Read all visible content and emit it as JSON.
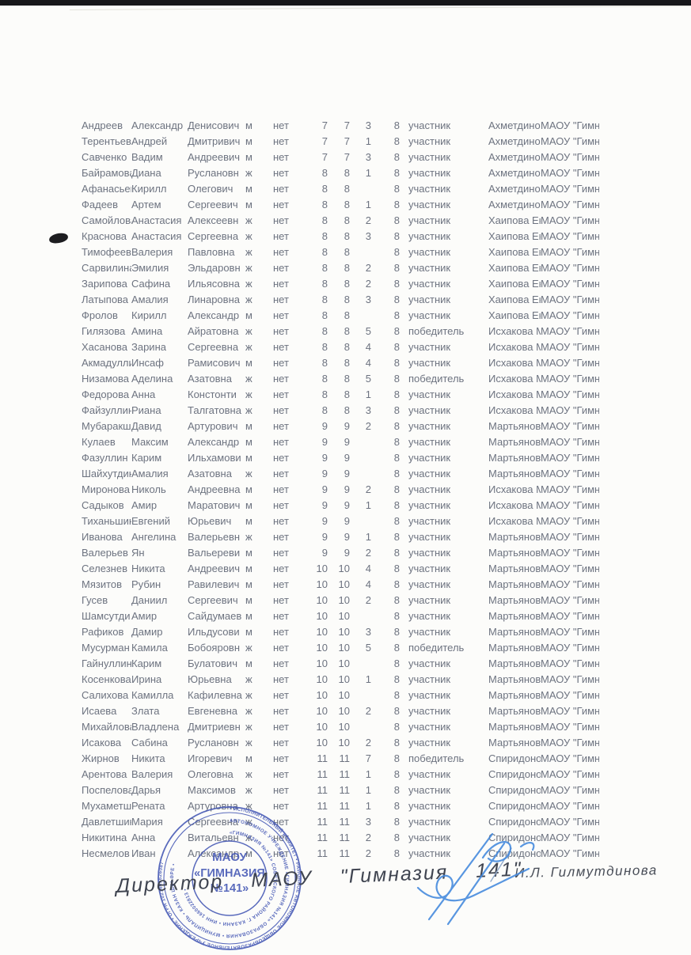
{
  "table": {
    "constants": {
      "no_flag": "нет",
      "code": "8"
    },
    "rows": [
      [
        "Андреев",
        "Александр",
        "Денисович",
        "м",
        "нет",
        "7",
        "7",
        "3",
        "8",
        "участник",
        "Ахметдино",
        "МАОУ \"Гимн"
      ],
      [
        "Терентьев",
        "Андрей",
        "Дмитривич",
        "м",
        "нет",
        "7",
        "7",
        "1",
        "8",
        "участник",
        "Ахметдино",
        "МАОУ \"Гимн"
      ],
      [
        "Савченко",
        "Вадим",
        "Андреевич",
        "м",
        "нет",
        "7",
        "7",
        "3",
        "8",
        "участник",
        "Ахметдино",
        "МАОУ \"Гимн"
      ],
      [
        "Байрамова",
        "Диана",
        "Руслановн",
        "ж",
        "нет",
        "8",
        "8",
        "1",
        "8",
        "участник",
        "Ахметдино",
        "МАОУ \"Гимн"
      ],
      [
        "Афанасьев",
        "Кирилл",
        "Олегович",
        "м",
        "нет",
        "8",
        "8",
        "",
        "8",
        "участник",
        "Ахметдино",
        "МАОУ \"Гимн"
      ],
      [
        "Фадеев",
        "Артем",
        "Сергеевич",
        "м",
        "нет",
        "8",
        "8",
        "1",
        "8",
        "участник",
        "Ахметдино",
        "МАОУ \"Гимн"
      ],
      [
        "Самойлова",
        "Анастасия",
        "Алексеевн",
        "ж",
        "нет",
        "8",
        "8",
        "2",
        "8",
        "участник",
        "Хаипова Ек",
        "МАОУ \"Гимн"
      ],
      [
        "Краснова",
        "Анастасия",
        "Сергеевна",
        "ж",
        "нет",
        "8",
        "8",
        "3",
        "8",
        "участник",
        "Хаипова Ек",
        "МАОУ \"Гимн"
      ],
      [
        "Тимофеева",
        "Валерия",
        "Павловна",
        "ж",
        "нет",
        "8",
        "8",
        "",
        "8",
        "участник",
        "Хаипова Ек",
        "МАОУ \"Гимн"
      ],
      [
        "Сарвилина",
        "Эмилия",
        "Эльдаровн",
        "ж",
        "нет",
        "8",
        "8",
        "2",
        "8",
        "участник",
        "Хаипова Ек",
        "МАОУ \"Гимн"
      ],
      [
        "Зарипова",
        "Сафина",
        "Ильясовна",
        "ж",
        "нет",
        "8",
        "8",
        "2",
        "8",
        "участник",
        "Хаипова Ек",
        "МАОУ \"Гимн"
      ],
      [
        "Латыпова",
        "Амалия",
        "Линаровна",
        "ж",
        "нет",
        "8",
        "8",
        "3",
        "8",
        "участник",
        "Хаипова Ек",
        "МАОУ \"Гимн"
      ],
      [
        "Фролов",
        "Кирилл",
        "Александр",
        "м",
        "нет",
        "8",
        "8",
        "",
        "8",
        "участник",
        "Хаипова Ек",
        "МАОУ \"Гимн"
      ],
      [
        "Гилязова",
        "Амина",
        "Айратовна",
        "ж",
        "нет",
        "8",
        "8",
        "5",
        "8",
        "победитель",
        "Исхакова М",
        "МАОУ \"Гимн"
      ],
      [
        "Хасанова",
        "Зарина",
        "Сергеевна",
        "ж",
        "нет",
        "8",
        "8",
        "4",
        "8",
        "участник",
        "Исхакова М",
        "МАОУ \"Гимн"
      ],
      [
        "Акмадулли",
        "Инсаф",
        "Рамисович",
        "м",
        "нет",
        "8",
        "8",
        "4",
        "8",
        "участник",
        "Исхакова М",
        "МАОУ \"Гимн"
      ],
      [
        "Низамова",
        "Аделина",
        "Азатовна",
        "ж",
        "нет",
        "8",
        "8",
        "5",
        "8",
        "победитель",
        "Исхакова М",
        "МАОУ \"Гимн"
      ],
      [
        "Федорова",
        "Анна",
        "Констонти",
        "ж",
        "нет",
        "8",
        "8",
        "1",
        "8",
        "участник",
        "Исхакова М",
        "МАОУ \"Гимн"
      ],
      [
        "Файзуллин",
        "Риана",
        "Талгатовна",
        "ж",
        "нет",
        "8",
        "8",
        "3",
        "8",
        "участник",
        "Исхакова М",
        "МАОУ \"Гимн"
      ],
      [
        "Мубаракш",
        "Давид",
        "Артурович",
        "м",
        "нет",
        "9",
        "9",
        "2",
        "8",
        "участник",
        "Мартьянов",
        "МАОУ \"Гимн"
      ],
      [
        "Кулаев",
        "Максим",
        "Александр",
        "м",
        "нет",
        "9",
        "9",
        "",
        "8",
        "участник",
        "Мартьянов",
        "МАОУ \"Гимн"
      ],
      [
        "Фазуллин",
        "Карим",
        "Ильхамови",
        "м",
        "нет",
        "9",
        "9",
        "",
        "8",
        "участник",
        "Мартьянов",
        "МАОУ \"Гимн"
      ],
      [
        "Шайхутдин",
        "Амалия",
        "Азатовна",
        "ж",
        "нет",
        "9",
        "9",
        "",
        "8",
        "участник",
        "Мартьянов",
        "МАОУ \"Гимн"
      ],
      [
        "Миронова",
        "Николь",
        "Андреевна",
        "м",
        "нет",
        "9",
        "9",
        "2",
        "8",
        "участник",
        "Исхакова М",
        "МАОУ \"Гимн"
      ],
      [
        "Садыков",
        "Амир",
        "Маратович",
        "м",
        "нет",
        "9",
        "9",
        "1",
        "8",
        "участник",
        "Исхакова М",
        "МАОУ \"Гимн"
      ],
      [
        "Тиханьшин",
        "Евгений",
        "Юрьевич",
        "м",
        "нет",
        "9",
        "9",
        "",
        "8",
        "участник",
        "Исхакова М",
        "МАОУ \"Гимн"
      ],
      [
        "Иванова",
        "Ангелина",
        "Валерьевн",
        "ж",
        "нет",
        "9",
        "9",
        "1",
        "8",
        "участник",
        "Мартьянов",
        "МАОУ \"Гимн"
      ],
      [
        "Валерьев",
        "Ян",
        "Вальереви",
        "м",
        "нет",
        "9",
        "9",
        "2",
        "8",
        "участник",
        "Мартьянов",
        "МАОУ \"Гимн"
      ],
      [
        "Селезнев",
        "Никита",
        "Андреевич",
        "м",
        "нет",
        "10",
        "10",
        "4",
        "8",
        "участник",
        "Мартьянов",
        "МАОУ \"Гимн"
      ],
      [
        "Мязитов",
        "Рубин",
        "Равилевич",
        "м",
        "нет",
        "10",
        "10",
        "4",
        "8",
        "участник",
        "Мартьянов",
        "МАОУ \"Гимн"
      ],
      [
        "Гусев",
        "Даниил",
        "Сергеевич",
        "м",
        "нет",
        "10",
        "10",
        "2",
        "8",
        "участник",
        "Мартьянов",
        "МАОУ \"Гимн"
      ],
      [
        "Шамсутди",
        "Амир",
        "Сайдумаев",
        "м",
        "нет",
        "10",
        "10",
        "",
        "8",
        "участник",
        "Мартьянов",
        "МАОУ \"Гимн"
      ],
      [
        "Рафиков",
        "Дамир",
        "Ильдусови",
        "м",
        "нет",
        "10",
        "10",
        "3",
        "8",
        "участник",
        "Мартьянов",
        "МАОУ \"Гимн"
      ],
      [
        "Мусурман",
        "Камила",
        "Бобояровн",
        "ж",
        "нет",
        "10",
        "10",
        "5",
        "8",
        "победитель",
        "Мартьянов",
        "МАОУ \"Гимн"
      ],
      [
        "Гайнуллин",
        "Карим",
        "Булатович",
        "м",
        "нет",
        "10",
        "10",
        "",
        "8",
        "участник",
        "Мартьянов",
        "МАОУ \"Гимн"
      ],
      [
        "Косенкова",
        "Ирина",
        "Юрьевна",
        "ж",
        "нет",
        "10",
        "10",
        "1",
        "8",
        "участник",
        "Мартьянов",
        "МАОУ \"Гимн"
      ],
      [
        "Салихова",
        "Камилла",
        "Кафилевна",
        "ж",
        "нет",
        "10",
        "10",
        "",
        "8",
        "участник",
        "Мартьянов",
        "МАОУ \"Гимн"
      ],
      [
        "Исаева",
        "Злата",
        "Евгеневна",
        "ж",
        "нет",
        "10",
        "10",
        "2",
        "8",
        "участник",
        "Мартьянов",
        "МАОУ \"Гимн"
      ],
      [
        "Михайлова",
        "Владлена",
        "Дмитриевн",
        "ж",
        "нет",
        "10",
        "10",
        "",
        "8",
        "участник",
        "Мартьянов",
        "МАОУ \"Гимн"
      ],
      [
        "Исакова",
        "Сабина",
        "Руслановн",
        "ж",
        "нет",
        "10",
        "10",
        "2",
        "8",
        "участник",
        "Мартьянов",
        "МАОУ \"Гимн"
      ],
      [
        "Жирнов",
        "Никита",
        "Игоревич",
        "м",
        "нет",
        "11",
        "11",
        "7",
        "8",
        "победитель",
        "Спиридоно",
        "МАОУ \"Гимн"
      ],
      [
        "Арентова",
        "Валерия",
        "Олеговна",
        "ж",
        "нет",
        "11",
        "11",
        "1",
        "8",
        "участник",
        "Спиридоно",
        "МАОУ \"Гимн"
      ],
      [
        "Поспелова",
        "Дарья",
        "Максимов",
        "ж",
        "нет",
        "11",
        "11",
        "1",
        "8",
        "участник",
        "Спиридоно",
        "МАОУ \"Гимн"
      ],
      [
        "Мухаметш",
        "Рената",
        "Артуровна",
        "ж",
        "нет",
        "11",
        "11",
        "1",
        "8",
        "участник",
        "Спиридоно",
        "МАОУ \"Гимн"
      ],
      [
        "Давлетшин",
        "Мария",
        "Сергеевна",
        "ж",
        "нет",
        "11",
        "11",
        "3",
        "8",
        "участник",
        "Спиридоно",
        "МАОУ \"Гимн"
      ],
      [
        "Никитина",
        "Анна",
        "Витальевн",
        "ж",
        "нет",
        "11",
        "11",
        "2",
        "8",
        "участник",
        "Спиридоно",
        "МАОУ \"Гимн"
      ],
      [
        "Несмелов",
        "Иван",
        "Александр",
        "м",
        "нет",
        "11",
        "11",
        "2",
        "8",
        "участник",
        "Спиридоно",
        "МАОУ \"Гимн"
      ]
    ]
  },
  "stamp": {
    "accent_color": "#4356b4",
    "center_line1": "МАОУ",
    "center_line2": "«ГИМНАЗИЯ",
    "center_line3": "№141»",
    "ring_outer": "• ИСПОЛНИТЕЛЬНЫЙ КОМИТЕТ • РАЙОННОЕ АВТОНОМНОЕ ОБЩЕОБРАЗОВАТЕЛЬНОЕ УЧРЕЖДЕНИЕ • ОГРН 1021603626087",
    "ring_middle": "АВТОНОМНОЕ УЧРЕЖДЕНИЕ «ГИМНАЗИЯ №141» ОБРАЗОВАНИЯ • МУНИЦИПАЛЬ • КАЗАН ШӘҺӘРЕ •",
    "ring_inner": "«ГИМНАЗИЯ №141» СОВЕТСКОГО РАЙОНА Г. КАЗАНИ • ИНН 1660022813 •"
  },
  "handwriting": {
    "director_line": "Директор МАОУ \"Гимназия 141\"",
    "signed_name": "И.Л. Гилмутдинова"
  }
}
